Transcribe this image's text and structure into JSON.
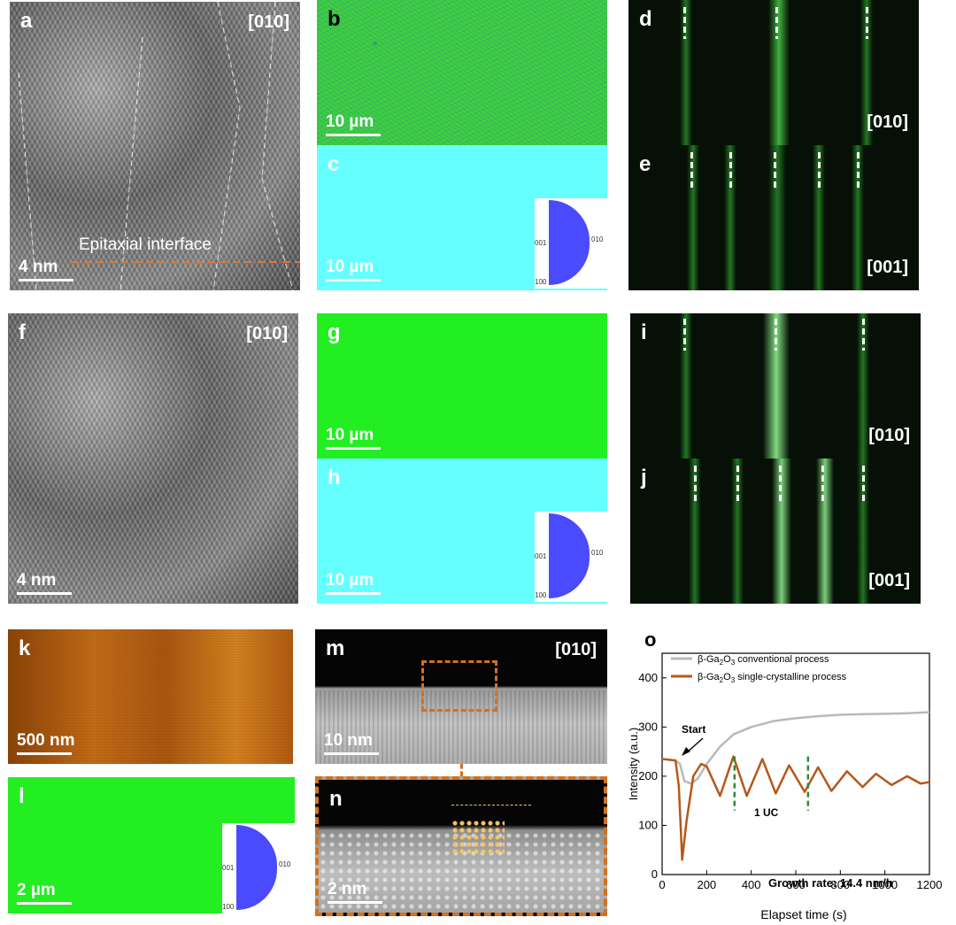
{
  "panels": {
    "a": {
      "letter": "a",
      "zone": "[010]",
      "interface_label": "Epitaxial interface",
      "scale": "4 nm"
    },
    "b": {
      "letter": "b",
      "scale": "10 µm"
    },
    "c": {
      "letter": "c",
      "scale": "10 µm"
    },
    "d": {
      "letter": "d",
      "zone": "[010]"
    },
    "e": {
      "letter": "e",
      "zone": "[001]"
    },
    "f": {
      "letter": "f",
      "zone": "[010]",
      "scale": "4 nm"
    },
    "g": {
      "letter": "g",
      "scale": "10 µm"
    },
    "h": {
      "letter": "h",
      "scale": "10 µm"
    },
    "i": {
      "letter": "i",
      "zone": "[010]"
    },
    "j": {
      "letter": "j",
      "zone": "[001]"
    },
    "k": {
      "letter": "k",
      "scale": "500 nm"
    },
    "l": {
      "letter": "l",
      "scale": "2 µm"
    },
    "m": {
      "letter": "m",
      "zone": "[010]",
      "scale": "10 nm"
    },
    "n": {
      "letter": "n",
      "scale": "2 nm"
    }
  },
  "ipf_key": {
    "top": "",
    "left": "001",
    "right": "010",
    "bottom": "100"
  },
  "colors": {
    "cyan_map": "#66ffff",
    "green_map": "#22ee22",
    "conventional": "#b9b9b9",
    "single_crystalline": "#b5581a",
    "uc_marker": "#2e8b2e"
  },
  "chart_data": {
    "type": "line",
    "panel_letter": "o",
    "xlabel": "Elapset time (s)",
    "ylabel": "Intensity (a.u.)",
    "xlim": [
      0,
      1200
    ],
    "ylim": [
      0,
      450
    ],
    "xticks": [
      0,
      200,
      400,
      600,
      800,
      1000,
      1200
    ],
    "yticks": [
      0,
      100,
      200,
      300,
      400
    ],
    "legend_position": "top",
    "series": [
      {
        "name": "β-Ga2O3 conventional process",
        "name_parts": {
          "pre": "β-Ga",
          "sub1": "2",
          "mid": "O",
          "sub2": "3",
          "post": " conventional process"
        },
        "x": [
          0,
          60,
          80,
          100,
          130,
          160,
          200,
          260,
          320,
          400,
          500,
          600,
          700,
          800,
          900,
          1000,
          1100,
          1200
        ],
        "y": [
          235,
          232,
          225,
          190,
          185,
          195,
          225,
          260,
          285,
          300,
          312,
          318,
          322,
          325,
          326,
          327,
          328,
          330
        ]
      },
      {
        "name": "β-Ga2O3 single-crystalline process",
        "name_parts": {
          "pre": "β-Ga",
          "sub1": "2",
          "mid": "O",
          "sub2": "3",
          "post": " single-crystalline process"
        },
        "x": [
          0,
          60,
          75,
          90,
          110,
          140,
          175,
          200,
          260,
          320,
          380,
          450,
          510,
          570,
          640,
          700,
          760,
          830,
          900,
          960,
          1030,
          1100,
          1160,
          1200
        ],
        "y": [
          235,
          232,
          180,
          30,
          110,
          200,
          225,
          220,
          160,
          240,
          160,
          235,
          165,
          222,
          168,
          218,
          170,
          210,
          178,
          205,
          182,
          200,
          185,
          188
        ]
      }
    ],
    "annotations": {
      "start": "Start",
      "uc": "1 UC",
      "growth_rate": "Growth rate: 14.4 nm/h"
    },
    "uc_marker_x": [
      325,
      655
    ]
  }
}
